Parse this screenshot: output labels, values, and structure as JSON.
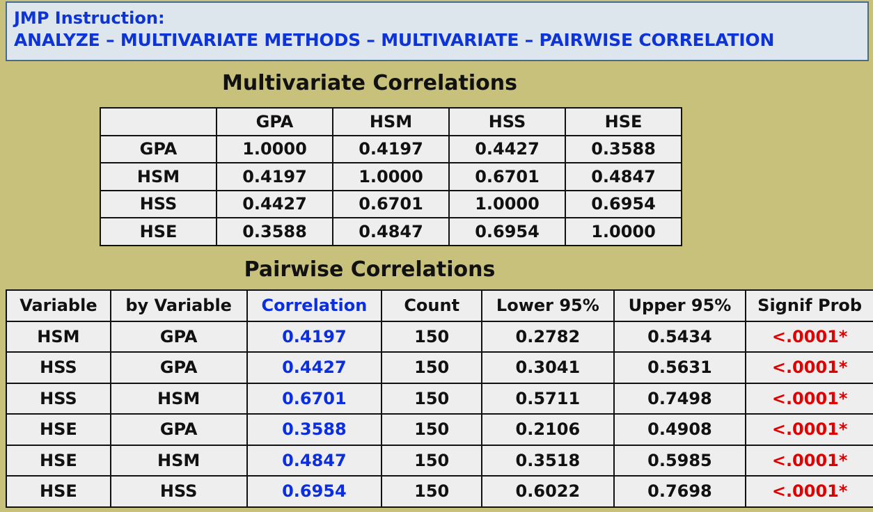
{
  "instruction": {
    "line1": "JMP Instruction:",
    "line2": "ANALYZE – MULTIVARIATE METHODS – MULTIVARIATE – PAIRWISE CORRELATION"
  },
  "multivariate": {
    "title": "Multivariate Correlations",
    "headers": [
      "",
      "GPA",
      "HSM",
      "HSS",
      "HSE"
    ],
    "rows": [
      [
        "GPA",
        "1.0000",
        "0.4197",
        "0.4427",
        "0.3588"
      ],
      [
        "HSM",
        "0.4197",
        "1.0000",
        "0.6701",
        "0.4847"
      ],
      [
        "HSS",
        "0.4427",
        "0.6701",
        "1.0000",
        "0.6954"
      ],
      [
        "HSE",
        "0.3588",
        "0.4847",
        "0.6954",
        "1.0000"
      ]
    ]
  },
  "pairwise": {
    "title": "Pairwise Correlations",
    "headers": [
      "Variable",
      "by Variable",
      "Correlation",
      "Count",
      "Lower 95%",
      "Upper 95%",
      "Signif Prob"
    ],
    "rows": [
      [
        "HSM",
        "GPA",
        "0.4197",
        "150",
        "0.2782",
        "0.5434",
        "<.0001*"
      ],
      [
        "HSS",
        "GPA",
        "0.4427",
        "150",
        "0.3041",
        "0.5631",
        "<.0001*"
      ],
      [
        "HSS",
        "HSM",
        "0.6701",
        "150",
        "0.5711",
        "0.7498",
        "<.0001*"
      ],
      [
        "HSE",
        "GPA",
        "0.3588",
        "150",
        "0.2106",
        "0.4908",
        "<.0001*"
      ],
      [
        "HSE",
        "HSM",
        "0.4847",
        "150",
        "0.3518",
        "0.5985",
        "<.0001*"
      ],
      [
        "HSE",
        "HSS",
        "0.6954",
        "150",
        "0.6022",
        "0.7698",
        "<.0001*"
      ]
    ]
  },
  "colors": {
    "background": "#c8c17c",
    "instruction_text": "#0c34d8",
    "correlation_text": "#0b2fe0",
    "signif_text": "#e00000"
  }
}
